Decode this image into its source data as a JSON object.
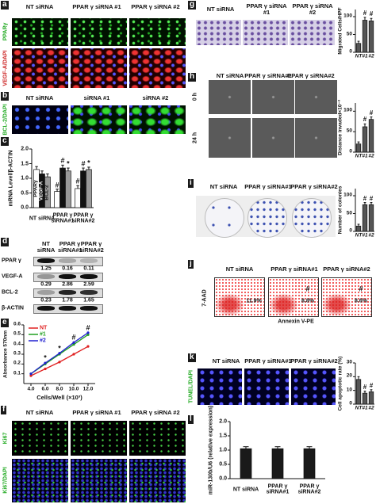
{
  "panels": {
    "a": {
      "label": "a",
      "headers": [
        "NT siRNA",
        "PPAR γ siRNA #1",
        "PPAR γ siRNA #2"
      ],
      "rows": [
        "PPARγ",
        "VEGF-A/DAPI"
      ]
    },
    "b": {
      "label": "b",
      "headers": [
        "NT siRNA",
        "siRNA #1",
        "siRNA #2"
      ],
      "rows": [
        "BCL-2/DAPI"
      ]
    },
    "c": {
      "label": "c"
    },
    "d": {
      "label": "d",
      "headers": [
        "NT siRNA",
        "PPAR γ siRNA#1",
        "PPAR γ siRNA#2"
      ],
      "rows": [
        {
          "name": "PPAR γ",
          "values": [
            1.25,
            0.16,
            0.11
          ]
        },
        {
          "name": "VEGF-A",
          "values": [
            0.29,
            2.86,
            2.59
          ]
        },
        {
          "name": "BCL-2",
          "values": [
            0.23,
            1.78,
            1.65
          ]
        },
        {
          "name": "β-ACTIN"
        }
      ]
    },
    "e": {
      "label": "e"
    },
    "f": {
      "label": "f",
      "headers": [
        "NT siRNA",
        "PPAR γ siRNA #1",
        "PPAR γ siRNA #2"
      ],
      "rows": [
        "Ki67",
        "Ki67/DAPI"
      ]
    },
    "g": {
      "label": "g",
      "headers": [
        "NT siRNA",
        "PPAR γ siRNA #1",
        "PPAR γ siRNA #2"
      ]
    },
    "h": {
      "label": "h",
      "headers": [
        "NT siRNA",
        "PPAR γ siRNA#1",
        "PPAR γ siRNA#2"
      ],
      "rows": [
        "0 h",
        "24 h"
      ]
    },
    "i": {
      "label": "i",
      "headers": [
        "NT siRNA",
        "PPAR γ siRNA#1",
        "PPAR γ siRNA#2"
      ]
    },
    "j": {
      "label": "j",
      "headers": [
        "NT siRNA",
        "PPAR γ siRNA#1",
        "PPAR γ siRNA#2"
      ],
      "y_label": "7-AAD",
      "x_label": "Annexin V-PE",
      "percents": [
        "11.9%",
        "8.8%",
        "8.6%"
      ],
      "marks": [
        null,
        "#",
        "#"
      ]
    },
    "k": {
      "label": "k",
      "headers": [
        "NT siRNA",
        "PPAR γ siRNA#1",
        "PPAR γ siRNA#2"
      ],
      "rows": [
        "TUNEL/DAPI"
      ]
    },
    "l": {
      "label": "l"
    }
  },
  "chart_data": [
    {
      "type": "bar",
      "y_label": "mRNA Level/β-ACTIN",
      "categories": [
        "NT siRNA",
        "PPAR γ siRNA#1",
        "PPAR γ siRNA#2"
      ],
      "series": [
        {
          "name": "PPARγ",
          "color": "#ffffff",
          "values": [
            1.3,
            0.55,
            0.65
          ],
          "errors": [
            0.1,
            0.08,
            0.1
          ],
          "marks": [
            null,
            "#",
            "#"
          ]
        },
        {
          "name": "VEGF-A",
          "color": "#111111",
          "values": [
            1.15,
            1.35,
            1.25
          ],
          "errors": [
            0.1,
            0.1,
            0.1
          ],
          "marks": [
            null,
            "#",
            "#"
          ]
        },
        {
          "name": "BCL-2",
          "color": "#9a9a9a",
          "values": [
            1.05,
            1.25,
            1.3
          ],
          "errors": [
            0.1,
            0.1,
            0.08
          ],
          "marks": [
            null,
            "*",
            "*"
          ]
        }
      ],
      "ylim": [
        0,
        2.0
      ],
      "yticks": [
        {
          "value": 0,
          "label": "0.0"
        },
        {
          "value": 0.5,
          "label": "0.5"
        },
        {
          "value": 1,
          "label": "1.0"
        },
        {
          "value": 1.5,
          "label": "1.5"
        },
        {
          "value": 2,
          "label": "2.0"
        }
      ]
    },
    {
      "type": "line",
      "y_label": "Absorbance 570nm",
      "x_label": "Cells/Well (×10³)",
      "x": [
        4,
        6,
        8,
        10,
        12
      ],
      "series": [
        {
          "name": "NT",
          "color": "#e02020",
          "values": [
            0.08,
            0.15,
            0.22,
            0.3,
            0.38
          ]
        },
        {
          "name": "#1",
          "color": "#20a020",
          "values": [
            0.1,
            0.2,
            0.3,
            0.4,
            0.5
          ]
        },
        {
          "name": "#2",
          "color": "#2020d0",
          "values": [
            0.1,
            0.21,
            0.31,
            0.42,
            0.52
          ]
        }
      ],
      "point_marks": [
        null,
        "*",
        "*",
        "#",
        "#"
      ],
      "xlim": [
        3,
        13
      ],
      "xticks": [
        {
          "value": 4,
          "label": "4.0"
        },
        {
          "value": 6,
          "label": "6.0"
        },
        {
          "value": 8,
          "label": "8.0"
        },
        {
          "value": 10,
          "label": "10.0"
        },
        {
          "value": 12,
          "label": "12.0"
        }
      ],
      "ylim": [
        0,
        0.6
      ],
      "yticks": [
        0.1,
        0.2,
        0.3,
        0.4,
        0.5,
        0.6
      ]
    },
    {
      "type": "bar",
      "y_label": "Migrated Cells/HPF",
      "categories": [
        "NT",
        "#1",
        "#2"
      ],
      "color": "#555555",
      "values": [
        25,
        90,
        88
      ],
      "errors": [
        6,
        8,
        7
      ],
      "marks": [
        null,
        "#",
        "#"
      ],
      "ylim": [
        0,
        120
      ],
      "yticks": [
        0,
        50,
        100
      ]
    },
    {
      "type": "bar",
      "y_label": "Distance invaded×10⁻³",
      "categories": [
        "NT",
        "#1",
        "#2"
      ],
      "color": "#555555",
      "values": [
        20,
        62,
        80
      ],
      "errors": [
        5,
        7,
        6
      ],
      "marks": [
        null,
        "#",
        "#"
      ],
      "ylim": [
        0,
        120
      ],
      "yticks": [
        0,
        50,
        100
      ]
    },
    {
      "type": "bar",
      "y_label": "Number of colonies",
      "categories": [
        "NT",
        "#1",
        "#2"
      ],
      "color": "#555555",
      "values": [
        15,
        75,
        75
      ],
      "errors": [
        5,
        6,
        6
      ],
      "marks": [
        null,
        "#",
        "#"
      ],
      "ylim": [
        0,
        120
      ],
      "yticks": [
        0,
        50,
        100
      ]
    },
    {
      "type": "bar",
      "y_label": "Cell apoptotic rate (%)",
      "categories": [
        "NT",
        "#1",
        "#2"
      ],
      "color": "#555555",
      "values": [
        18,
        8,
        9
      ],
      "errors": [
        2,
        1.5,
        1.5
      ],
      "marks": [
        null,
        "#",
        "#"
      ],
      "ylim": [
        0,
        30
      ],
      "yticks": [
        0,
        10,
        20,
        30
      ]
    },
    {
      "type": "bar",
      "y_label": "miR-130b/U6 (relative expression)",
      "categories": [
        "NT siRNA",
        "PPAR γ siRNA#1",
        "PPAR γ siRNA#2"
      ],
      "color": "#1a1a1a",
      "values": [
        1.05,
        1.05,
        1.05
      ],
      "errors": [
        0.07,
        0.07,
        0.07
      ],
      "ylim": [
        0,
        2.0
      ],
      "yticks": [
        {
          "value": 0,
          "label": "0.0"
        },
        {
          "value": 0.5,
          "label": "0.5"
        },
        {
          "value": 1,
          "label": "1.0"
        },
        {
          "value": 1.5,
          "label": "1.5"
        },
        {
          "value": 2,
          "label": "2.0"
        }
      ]
    }
  ]
}
